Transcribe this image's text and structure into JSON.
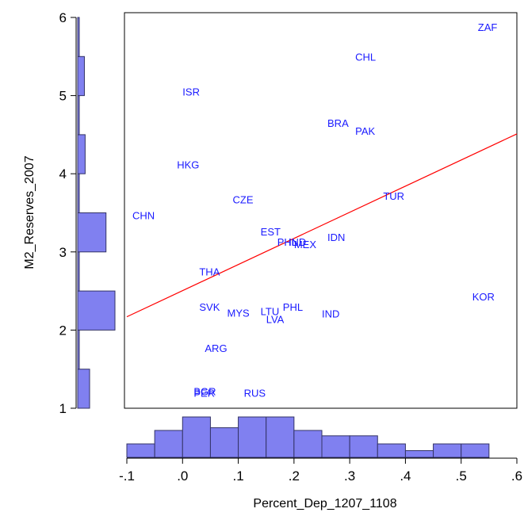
{
  "chart_data": {
    "type": "scatter",
    "title": "",
    "xlabel": "Percent_Dep_1207_1108",
    "ylabel": "M2_Reserves_2007",
    "xlim": [
      -0.1,
      0.6
    ],
    "ylim": [
      1,
      6
    ],
    "x_ticks": [
      -0.1,
      0.0,
      0.1,
      0.2,
      0.3,
      0.4,
      0.5,
      0.6
    ],
    "x_tick_labels": [
      "-.1",
      ".0",
      ".1",
      ".2",
      ".3",
      ".4",
      ".5",
      ".6"
    ],
    "y_ticks": [
      1,
      2,
      3,
      4,
      5,
      6
    ],
    "y_tick_labels": [
      "1",
      "2",
      "3",
      "4",
      "5",
      "6"
    ],
    "points": [
      {
        "label": "ZAF",
        "x": 0.53,
        "y": 5.88
      },
      {
        "label": "CHL",
        "x": 0.31,
        "y": 5.5
      },
      {
        "label": "ISR",
        "x": 0.0,
        "y": 5.05
      },
      {
        "label": "BRA",
        "x": 0.26,
        "y": 4.65
      },
      {
        "label": "PAK",
        "x": 0.31,
        "y": 4.55
      },
      {
        "label": "HKG",
        "x": -0.01,
        "y": 4.12
      },
      {
        "label": "TUR",
        "x": 0.36,
        "y": 3.72
      },
      {
        "label": "CZE",
        "x": 0.09,
        "y": 3.67
      },
      {
        "label": "CHN",
        "x": -0.09,
        "y": 3.47
      },
      {
        "label": "EST",
        "x": 0.14,
        "y": 3.26
      },
      {
        "label": "IDN",
        "x": 0.26,
        "y": 3.19
      },
      {
        "label": "PHL",
        "x": 0.17,
        "y": 3.13
      },
      {
        "label": "IND",
        "x": 0.19,
        "y": 3.13
      },
      {
        "label": "MEX",
        "x": 0.2,
        "y": 3.1
      },
      {
        "label": "THA",
        "x": 0.03,
        "y": 2.75
      },
      {
        "label": "KOR",
        "x": 0.52,
        "y": 2.43
      },
      {
        "label": "SVK",
        "x": 0.03,
        "y": 2.3
      },
      {
        "label": "PHL",
        "x": 0.18,
        "y": 2.3
      },
      {
        "label": "MYS",
        "x": 0.08,
        "y": 2.22
      },
      {
        "label": "LTU",
        "x": 0.14,
        "y": 2.24
      },
      {
        "label": "IND",
        "x": 0.25,
        "y": 2.21
      },
      {
        "label": "LVA",
        "x": 0.15,
        "y": 2.14
      },
      {
        "label": "ARG",
        "x": 0.04,
        "y": 1.77
      },
      {
        "label": "BGR",
        "x": 0.02,
        "y": 1.22
      },
      {
        "label": "PER",
        "x": 0.02,
        "y": 1.2
      },
      {
        "label": "RUS",
        "x": 0.11,
        "y": 1.2
      }
    ],
    "fit_line": {
      "x": [
        -0.1,
        0.6
      ],
      "y": [
        2.17,
        4.51
      ]
    },
    "x_histogram": {
      "bin_edges": [
        -0.1,
        -0.05,
        0.0,
        0.05,
        0.1,
        0.15,
        0.2,
        0.25,
        0.3,
        0.35,
        0.4,
        0.45,
        0.5,
        0.55
      ],
      "counts": [
        1,
        2,
        3,
        2.2,
        3,
        3,
        2,
        1.6,
        1.6,
        1,
        0.5,
        1,
        1
      ]
    },
    "y_histogram": {
      "bin_edges": [
        1.0,
        1.5,
        2.0,
        2.5,
        3.0,
        3.5,
        4.0,
        4.5,
        5.0,
        5.5,
        6.0
      ],
      "counts": [
        0.8,
        0.1,
        2.5,
        0.1,
        1.9,
        0.05,
        0.5,
        0.1,
        0.45,
        0.05
      ]
    },
    "colors": {
      "points": "#1a1aff",
      "fit_line": "#ff0000",
      "hist_fill": "#8080f0",
      "hist_stroke": "#333366",
      "axis": "#000000"
    },
    "grid": false,
    "legend": "none"
  }
}
